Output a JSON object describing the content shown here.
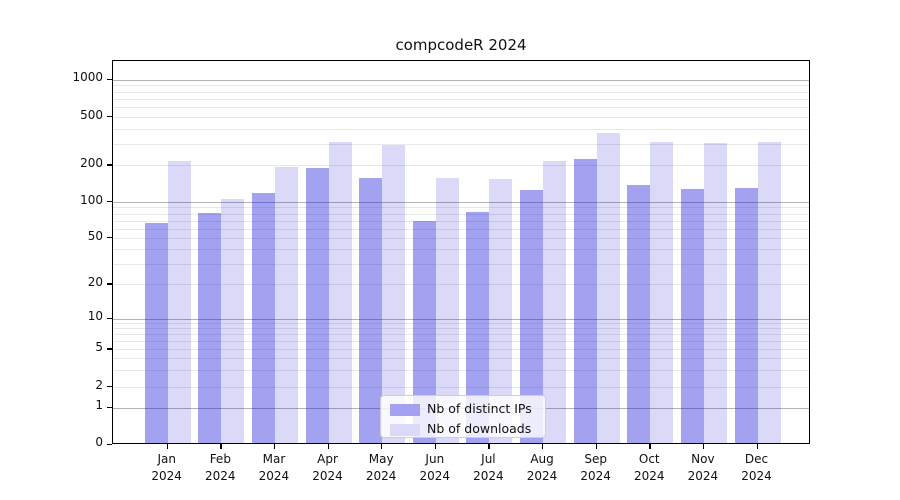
{
  "title": "compcodeR 2024",
  "chart_data": {
    "type": "bar",
    "title": "compcodeR 2024",
    "categories": [
      "Jan 2024",
      "Feb 2024",
      "Mar 2024",
      "Apr 2024",
      "May 2024",
      "Jun 2024",
      "Jul 2024",
      "Aug 2024",
      "Sep 2024",
      "Oct 2024",
      "Nov 2024",
      "Dec 2024"
    ],
    "month_labels": [
      "Jan",
      "Feb",
      "Mar",
      "Apr",
      "May",
      "Jun",
      "Jul",
      "Aug",
      "Sep",
      "Oct",
      "Nov",
      "Dec"
    ],
    "year_label": "2024",
    "series": [
      {
        "name": "Nb of distinct IPs",
        "key": "ips",
        "color": "#a2a2f0",
        "fill": "rgba(22,22,218,0.4)",
        "values": [
          65,
          78,
          115,
          185,
          153,
          67,
          80,
          121,
          218,
          134,
          124,
          126
        ]
      },
      {
        "name": "Nb of downloads",
        "key": "downloads",
        "color": "#dadaf8",
        "fill": "rgba(8,8,208,0.15)",
        "values": [
          210,
          102,
          187,
          300,
          283,
          153,
          150,
          209,
          357,
          304,
          294,
          300
        ]
      }
    ],
    "y_ticks": [
      0,
      1,
      2,
      5,
      10,
      20,
      50,
      100,
      200,
      500,
      1000
    ],
    "y_scale": "log-like (asinh/log with 0 baseline)",
    "ylim": [
      0,
      1400
    ],
    "xlabel": "",
    "ylabel": "",
    "grid": "horizontal log minor + major (powers of 10 darker)",
    "legend_position": "bottom-center inside plot"
  },
  "colors": {
    "major_grid": "#b3b3b3",
    "minor_grid": "#e8e8e8",
    "axis": "#000000",
    "text": "#111111",
    "legend_border": "#cfcfcf",
    "legend_bg": "rgba(255,255,255,0.8)"
  }
}
